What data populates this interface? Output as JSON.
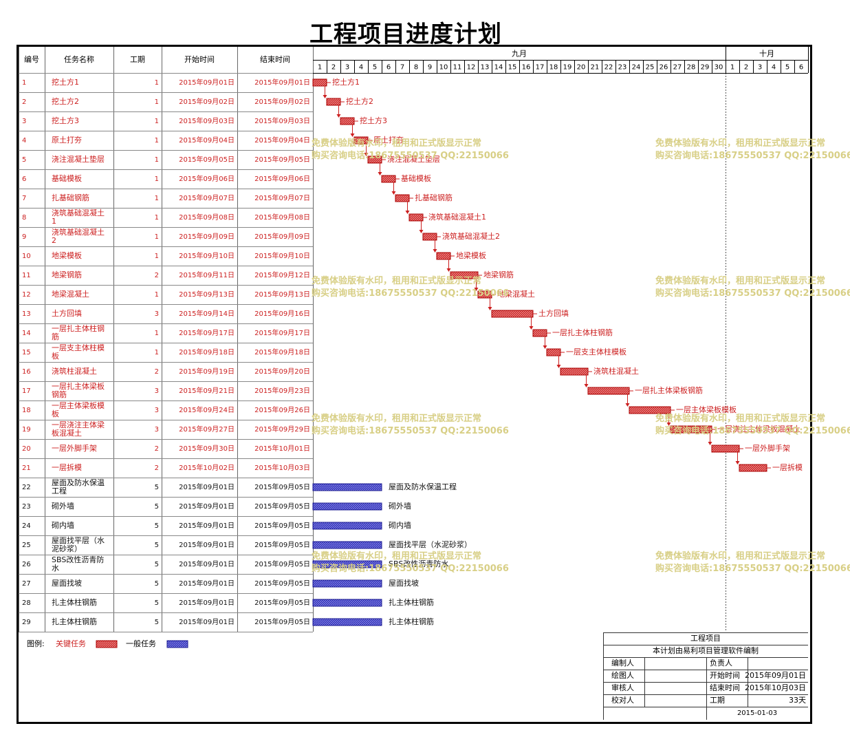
{
  "title": "工程项目进度计划",
  "chart_data": {
    "type": "gantt",
    "columns": [
      "编号",
      "任务名称",
      "工期",
      "开始时间",
      "结束时间"
    ],
    "months": [
      {
        "label": "九月",
        "days": [
          1,
          2,
          3,
          4,
          5,
          6,
          7,
          8,
          9,
          10,
          11,
          12,
          13,
          14,
          15,
          16,
          17,
          18,
          19,
          20,
          21,
          22,
          23,
          24,
          25,
          26,
          27,
          28,
          29,
          30
        ]
      },
      {
        "label": "十月",
        "days": [
          1,
          2,
          3,
          4,
          5,
          6
        ]
      }
    ],
    "tasks": [
      {
        "id": "1",
        "name": [
          "挖土方1"
        ],
        "duration": 1,
        "start": "2015年09月01日",
        "end": "2015年09月01日",
        "start_day": 1,
        "end_day": 1,
        "critical": true,
        "bar_label": "挖土方1"
      },
      {
        "id": "2",
        "name": [
          "挖土方2"
        ],
        "duration": 1,
        "start": "2015年09月02日",
        "end": "2015年09月02日",
        "start_day": 2,
        "end_day": 2,
        "critical": true,
        "bar_label": "挖土方2"
      },
      {
        "id": "3",
        "name": [
          "挖土方3"
        ],
        "duration": 1,
        "start": "2015年09月03日",
        "end": "2015年09月03日",
        "start_day": 3,
        "end_day": 3,
        "critical": true,
        "bar_label": "挖土方3"
      },
      {
        "id": "4",
        "name": [
          "原土打夯"
        ],
        "duration": 1,
        "start": "2015年09月04日",
        "end": "2015年09月04日",
        "start_day": 4,
        "end_day": 4,
        "critical": true,
        "bar_label": "原土打夯"
      },
      {
        "id": "5",
        "name": [
          "浇注混凝土垫层"
        ],
        "duration": 1,
        "start": "2015年09月05日",
        "end": "2015年09月05日",
        "start_day": 5,
        "end_day": 5,
        "critical": true,
        "bar_label": "浇注混凝土垫层"
      },
      {
        "id": "6",
        "name": [
          "基础模板"
        ],
        "duration": 1,
        "start": "2015年09月06日",
        "end": "2015年09月06日",
        "start_day": 6,
        "end_day": 6,
        "critical": true,
        "bar_label": "基础模板"
      },
      {
        "id": "7",
        "name": [
          "扎基础钢筋"
        ],
        "duration": 1,
        "start": "2015年09月07日",
        "end": "2015年09月07日",
        "start_day": 7,
        "end_day": 7,
        "critical": true,
        "bar_label": "扎基础钢筋"
      },
      {
        "id": "8",
        "name": [
          "浇筑基础混凝土",
          "1"
        ],
        "duration": 1,
        "start": "2015年09月08日",
        "end": "2015年09月08日",
        "start_day": 8,
        "end_day": 8,
        "critical": true,
        "bar_label": "浇筑基础混凝土1"
      },
      {
        "id": "9",
        "name": [
          "浇筑基础混凝土",
          "2"
        ],
        "duration": 1,
        "start": "2015年09月09日",
        "end": "2015年09月09日",
        "start_day": 9,
        "end_day": 9,
        "critical": true,
        "bar_label": "浇筑基础混凝土2"
      },
      {
        "id": "10",
        "name": [
          "地梁模板"
        ],
        "duration": 1,
        "start": "2015年09月10日",
        "end": "2015年09月10日",
        "start_day": 10,
        "end_day": 10,
        "critical": true,
        "bar_label": "地梁模板"
      },
      {
        "id": "11",
        "name": [
          "地梁钢筋"
        ],
        "duration": 2,
        "start": "2015年09月11日",
        "end": "2015年09月12日",
        "start_day": 11,
        "end_day": 12,
        "critical": true,
        "bar_label": "地梁钢筋"
      },
      {
        "id": "12",
        "name": [
          "地梁混凝土"
        ],
        "duration": 1,
        "start": "2015年09月13日",
        "end": "2015年09月13日",
        "start_day": 13,
        "end_day": 13,
        "critical": true,
        "bar_label": "地梁混凝土"
      },
      {
        "id": "13",
        "name": [
          "土方回填"
        ],
        "duration": 3,
        "start": "2015年09月14日",
        "end": "2015年09月16日",
        "start_day": 14,
        "end_day": 16,
        "critical": true,
        "bar_label": "土方回填"
      },
      {
        "id": "14",
        "name": [
          "一层扎主体柱钢",
          "筋"
        ],
        "duration": 1,
        "start": "2015年09月17日",
        "end": "2015年09月17日",
        "start_day": 17,
        "end_day": 17,
        "critical": true,
        "bar_label": "一层扎主体柱钢筋"
      },
      {
        "id": "15",
        "name": [
          "一层支主体柱模",
          "板"
        ],
        "duration": 1,
        "start": "2015年09月18日",
        "end": "2015年09月18日",
        "start_day": 18,
        "end_day": 18,
        "critical": true,
        "bar_label": "一层支主体柱模板"
      },
      {
        "id": "16",
        "name": [
          "浇筑柱混凝土"
        ],
        "duration": 2,
        "start": "2015年09月19日",
        "end": "2015年09月20日",
        "start_day": 19,
        "end_day": 20,
        "critical": true,
        "bar_label": "浇筑柱混凝土"
      },
      {
        "id": "17",
        "name": [
          "一层扎主体梁板",
          "钢筋"
        ],
        "duration": 3,
        "start": "2015年09月21日",
        "end": "2015年09月23日",
        "start_day": 21,
        "end_day": 23,
        "critical": true,
        "bar_label": "一层扎主体梁板钢筋"
      },
      {
        "id": "18",
        "name": [
          "一层主体梁板模",
          "板"
        ],
        "duration": 3,
        "start": "2015年09月24日",
        "end": "2015年09月26日",
        "start_day": 24,
        "end_day": 26,
        "critical": true,
        "bar_label": "一层主体梁板模板"
      },
      {
        "id": "19",
        "name": [
          "一层浇注主体梁",
          "板混凝土"
        ],
        "duration": 3,
        "start": "2015年09月27日",
        "end": "2015年09月29日",
        "start_day": 27,
        "end_day": 29,
        "critical": true,
        "bar_label": "一层浇注主体梁板混凝土"
      },
      {
        "id": "20",
        "name": [
          "一层外脚手架"
        ],
        "duration": 2,
        "start": "2015年09月30日",
        "end": "2015年10月01日",
        "start_day": 30,
        "end_day": 31,
        "critical": true,
        "bar_label": "一层外脚手架"
      },
      {
        "id": "21",
        "name": [
          "一层拆模"
        ],
        "duration": 2,
        "start": "2015年10月02日",
        "end": "2015年10月03日",
        "start_day": 32,
        "end_day": 33,
        "critical": true,
        "bar_label": "一层拆模"
      },
      {
        "id": "22",
        "name": [
          "屋面及防水保温",
          "工程"
        ],
        "duration": 5,
        "start": "2015年09月01日",
        "end": "2015年09月05日",
        "start_day": 1,
        "end_day": 5,
        "critical": false,
        "bar_label": "屋面及防水保温工程"
      },
      {
        "id": "23",
        "name": [
          "砌外墙"
        ],
        "duration": 5,
        "start": "2015年09月01日",
        "end": "2015年09月05日",
        "start_day": 1,
        "end_day": 5,
        "critical": false,
        "bar_label": "砌外墙"
      },
      {
        "id": "24",
        "name": [
          "砌内墙"
        ],
        "duration": 5,
        "start": "2015年09月01日",
        "end": "2015年09月05日",
        "start_day": 1,
        "end_day": 5,
        "critical": false,
        "bar_label": "砌内墙"
      },
      {
        "id": "25",
        "name": [
          "屋面找平层（水",
          "泥砂浆）"
        ],
        "duration": 5,
        "start": "2015年09月01日",
        "end": "2015年09月05日",
        "start_day": 1,
        "end_day": 5,
        "critical": false,
        "bar_label": "屋面找平层（水泥砂浆）"
      },
      {
        "id": "26",
        "name": [
          "SBS改性沥青防",
          "水"
        ],
        "duration": 5,
        "start": "2015年09月01日",
        "end": "2015年09月05日",
        "start_day": 1,
        "end_day": 5,
        "critical": false,
        "bar_label": "SBS改性沥青防水"
      },
      {
        "id": "27",
        "name": [
          "屋面找坡"
        ],
        "duration": 5,
        "start": "2015年09月01日",
        "end": "2015年09月05日",
        "start_day": 1,
        "end_day": 5,
        "critical": false,
        "bar_label": "屋面找坡"
      },
      {
        "id": "28",
        "name": [
          "扎主体柱钢筋"
        ],
        "duration": 5,
        "start": "2015年09月01日",
        "end": "2015年09月05日",
        "start_day": 1,
        "end_day": 5,
        "critical": false,
        "bar_label": "扎主体柱钢筋"
      },
      {
        "id": "29",
        "name": [
          "扎主体柱钢筋"
        ],
        "duration": 5,
        "start": "2015年09月01日",
        "end": "2015年09月05日",
        "start_day": 1,
        "end_day": 5,
        "critical": false,
        "bar_label": "扎主体柱钢筋"
      }
    ],
    "legend": {
      "title": "图例:",
      "critical": "关键任务",
      "normal": "一般任务",
      "critical_color": "#cc2222",
      "normal_color": "#2a2ab8"
    }
  },
  "info_box": {
    "project": "工程项目",
    "note": "本计划由易利项目管理软件编制",
    "rows": [
      {
        "left": "编制人",
        "right_label": "负责人",
        "right_value": ""
      },
      {
        "left": "绘图人",
        "right_label": "开始时间",
        "right_value": "2015年09月01日"
      },
      {
        "left": "审核人",
        "right_label": "结束时间",
        "right_value": "2015年10月03日"
      },
      {
        "left": "校对人",
        "right_label": "工期",
        "right_value": "33天"
      }
    ],
    "date": "2015-01-03"
  },
  "watermark": {
    "line1": "免费体验版有水印，租用和正式版显示正常",
    "line2": "购买咨询电话:18675550537 QQ:22150066"
  }
}
